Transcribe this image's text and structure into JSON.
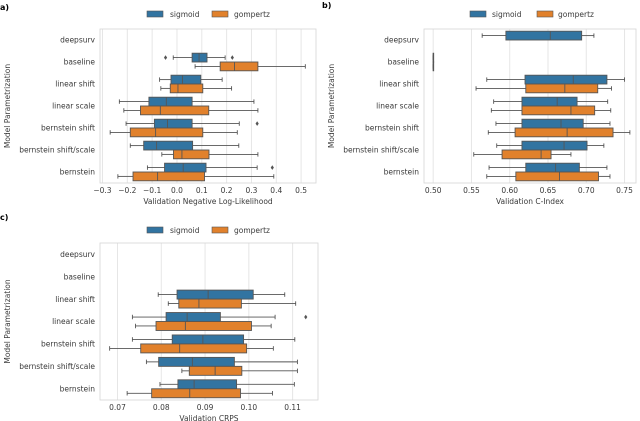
{
  "legend": {
    "items": [
      "sigmoid",
      "gompertz"
    ]
  },
  "colors": {
    "sigmoid": "#3274a1",
    "gompertz": "#e1812c",
    "edge": "#555555",
    "grid": "#e6e6e6",
    "frame": "#d5d5d5"
  },
  "chart_data": [
    {
      "type": "box",
      "panel_label": "a)",
      "xlabel": "Validation Negative Log-Likelihood",
      "ylabel": "Model Parametrization",
      "orientation": "horizontal",
      "grid": "vertical",
      "legend_position": "top",
      "xlim": [
        -0.31,
        0.56
      ],
      "xticks": [
        -0.3,
        -0.2,
        -0.1,
        0.0,
        0.1,
        0.2,
        0.3,
        0.4,
        0.5
      ],
      "xtick_labels": [
        "−0.3",
        "−0.2",
        "−0.1",
        "0.0",
        "0.1",
        "0.2",
        "0.3",
        "0.4",
        "0.5"
      ],
      "categories": [
        "deepsurv",
        "baseline",
        "linear shift",
        "linear scale",
        "bernstein shift",
        "bernstein shift/scale",
        "bernstein"
      ],
      "series": [
        {
          "name": "sigmoid",
          "boxes": [
            null,
            {
              "whislo": -0.015,
              "q1": 0.061,
              "med": 0.089,
              "q3": 0.121,
              "whishi": 0.194,
              "fliers": [
                -0.046,
                0.223
              ]
            },
            {
              "whislo": -0.07,
              "q1": -0.024,
              "med": 0.022,
              "q3": 0.096,
              "whishi": 0.182,
              "fliers": []
            },
            {
              "whislo": -0.232,
              "q1": -0.113,
              "med": -0.043,
              "q3": 0.061,
              "whishi": 0.31,
              "fliers": []
            },
            {
              "whislo": -0.205,
              "q1": -0.091,
              "med": -0.038,
              "q3": 0.061,
              "whishi": 0.251,
              "fliers": [
                0.323
              ]
            },
            {
              "whislo": -0.188,
              "q1": -0.134,
              "med": -0.082,
              "q3": 0.063,
              "whishi": 0.249,
              "fliers": []
            },
            {
              "whislo": -0.119,
              "q1": -0.05,
              "med": 0.025,
              "q3": 0.117,
              "whishi": 0.323,
              "fliers": [
                0.384
              ]
            }
          ]
        },
        {
          "name": "gompertz",
          "boxes": [
            null,
            {
              "whislo": 0.073,
              "q1": 0.174,
              "med": 0.232,
              "q3": 0.326,
              "whishi": 0.517,
              "fliers": []
            },
            {
              "whislo": -0.065,
              "q1": -0.027,
              "med": 0.004,
              "q3": 0.104,
              "whishi": 0.22,
              "fliers": []
            },
            {
              "whislo": -0.214,
              "q1": -0.147,
              "med": -0.067,
              "q3": 0.128,
              "whishi": 0.326,
              "fliers": []
            },
            {
              "whislo": -0.269,
              "q1": -0.188,
              "med": -0.086,
              "q3": 0.104,
              "whishi": 0.243,
              "fliers": []
            },
            {
              "whislo": -0.061,
              "q1": -0.014,
              "med": 0.02,
              "q3": 0.129,
              "whishi": 0.326,
              "fliers": []
            },
            {
              "whislo": -0.238,
              "q1": -0.177,
              "med": -0.078,
              "q3": 0.111,
              "whishi": 0.39,
              "fliers": []
            }
          ]
        }
      ]
    },
    {
      "type": "box",
      "panel_label": "b)",
      "xlabel": "Validation C-Index",
      "ylabel": "Model Parametrization",
      "orientation": "horizontal",
      "grid": "vertical",
      "legend_position": "top",
      "xlim": [
        0.488,
        0.765
      ],
      "xticks": [
        0.5,
        0.55,
        0.6,
        0.65,
        0.7,
        0.75
      ],
      "xtick_labels": [
        "0.50",
        "0.55",
        "0.60",
        "0.65",
        "0.70",
        "0.75"
      ],
      "categories": [
        "deepsurv",
        "baseline",
        "linear shift",
        "linear scale",
        "bernstein shift",
        "bernstein shift/scale",
        "bernstein"
      ],
      "series": [
        {
          "name": "sigmoid",
          "boxes": [
            {
              "whislo": 0.564,
              "q1": 0.595,
              "med": 0.653,
              "q3": 0.694,
              "whishi": 0.71,
              "fliers": []
            },
            {
              "whislo": 0.5,
              "q1": 0.5,
              "med": 0.5,
              "q3": 0.5,
              "whishi": 0.5,
              "fliers": []
            },
            {
              "whislo": 0.57,
              "q1": 0.62,
              "med": 0.683,
              "q3": 0.727,
              "whishi": 0.75,
              "fliers": []
            },
            {
              "whislo": 0.579,
              "q1": 0.616,
              "med": 0.662,
              "q3": 0.688,
              "whishi": 0.728,
              "fliers": []
            },
            {
              "whislo": 0.582,
              "q1": 0.616,
              "med": 0.667,
              "q3": 0.696,
              "whishi": 0.731,
              "fliers": []
            },
            {
              "whislo": 0.583,
              "q1": 0.616,
              "med": 0.671,
              "q3": 0.701,
              "whishi": 0.723,
              "fliers": []
            },
            {
              "whislo": 0.573,
              "q1": 0.621,
              "med": 0.66,
              "q3": 0.691,
              "whishi": 0.727,
              "fliers": []
            }
          ]
        },
        {
          "name": "gompertz",
          "boxes": [
            null,
            {
              "whislo": 0.5,
              "q1": 0.5,
              "med": 0.5,
              "q3": 0.5,
              "whishi": 0.5,
              "fliers": []
            },
            {
              "whislo": 0.556,
              "q1": 0.621,
              "med": 0.672,
              "q3": 0.715,
              "whishi": 0.733,
              "fliers": []
            },
            {
              "whislo": 0.576,
              "q1": 0.616,
              "med": 0.68,
              "q3": 0.711,
              "whishi": 0.732,
              "fliers": []
            },
            {
              "whislo": 0.572,
              "q1": 0.607,
              "med": 0.675,
              "q3": 0.735,
              "whishi": 0.757,
              "fliers": []
            },
            {
              "whislo": 0.553,
              "q1": 0.59,
              "med": 0.641,
              "q3": 0.654,
              "whishi": 0.68,
              "fliers": []
            },
            {
              "whislo": 0.57,
              "q1": 0.608,
              "med": 0.665,
              "q3": 0.716,
              "whishi": 0.731,
              "fliers": []
            }
          ]
        }
      ]
    },
    {
      "type": "box",
      "panel_label": "c)",
      "xlabel": "Validation CRPS",
      "ylabel": "Model Parametrization",
      "orientation": "horizontal",
      "grid": "vertical",
      "legend_position": "top",
      "xlim": [
        0.066,
        0.1158
      ],
      "xticks": [
        0.07,
        0.08,
        0.09,
        0.1,
        0.11
      ],
      "xtick_labels": [
        "0.07",
        "0.08",
        "0.09",
        "0.10",
        "0.11"
      ],
      "categories": [
        "deepsurv",
        "baseline",
        "linear shift",
        "linear scale",
        "bernstein shift",
        "bernstein shift/scale",
        "bernstein"
      ],
      "series": [
        {
          "name": "sigmoid",
          "boxes": [
            null,
            null,
            {
              "whislo": 0.0793,
              "q1": 0.0836,
              "med": 0.0907,
              "q3": 0.101,
              "whishi": 0.1082,
              "fliers": []
            },
            {
              "whislo": 0.0734,
              "q1": 0.0811,
              "med": 0.0859,
              "q3": 0.0935,
              "whishi": 0.106,
              "fliers": [
                0.113
              ]
            },
            {
              "whislo": 0.0734,
              "q1": 0.0825,
              "med": 0.0895,
              "q3": 0.0988,
              "whishi": 0.1105,
              "fliers": []
            },
            {
              "whislo": 0.0766,
              "q1": 0.0794,
              "med": 0.0871,
              "q3": 0.0967,
              "whishi": 0.1111,
              "fliers": []
            },
            {
              "whislo": 0.0797,
              "q1": 0.0838,
              "med": 0.0875,
              "q3": 0.0972,
              "whishi": 0.1104,
              "fliers": []
            }
          ]
        },
        {
          "name": "gompertz",
          "boxes": [
            null,
            null,
            {
              "whislo": 0.0816,
              "q1": 0.084,
              "med": 0.0886,
              "q3": 0.0983,
              "whishi": 0.1107,
              "fliers": []
            },
            {
              "whislo": 0.0741,
              "q1": 0.0788,
              "med": 0.0855,
              "q3": 0.1006,
              "whishi": 0.1051,
              "fliers": []
            },
            {
              "whislo": 0.0682,
              "q1": 0.0753,
              "med": 0.0842,
              "q3": 0.0995,
              "whishi": 0.1056,
              "fliers": []
            },
            {
              "whislo": 0.0847,
              "q1": 0.0864,
              "med": 0.0923,
              "q3": 0.0984,
              "whishi": 0.1111,
              "fliers": []
            },
            {
              "whislo": 0.0722,
              "q1": 0.0778,
              "med": 0.0865,
              "q3": 0.0981,
              "whishi": 0.1054,
              "fliers": []
            }
          ]
        }
      ]
    }
  ]
}
